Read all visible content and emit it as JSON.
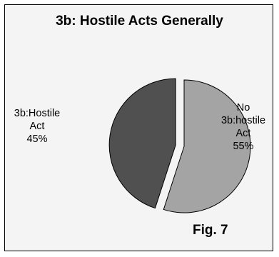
{
  "chart_data": {
    "type": "pie",
    "title": "3b: Hostile Acts Generally",
    "slices": [
      {
        "label_lines": [
          "3b:Hostile",
          "Act",
          "45%"
        ],
        "value": 45,
        "color": "#505050",
        "exploded": true
      },
      {
        "label_lines": [
          "No",
          "3b:hostile",
          "Act",
          "55%"
        ],
        "value": 55,
        "color": "#a4a4a4",
        "exploded": false
      }
    ],
    "annotation": "Fig. 7"
  }
}
